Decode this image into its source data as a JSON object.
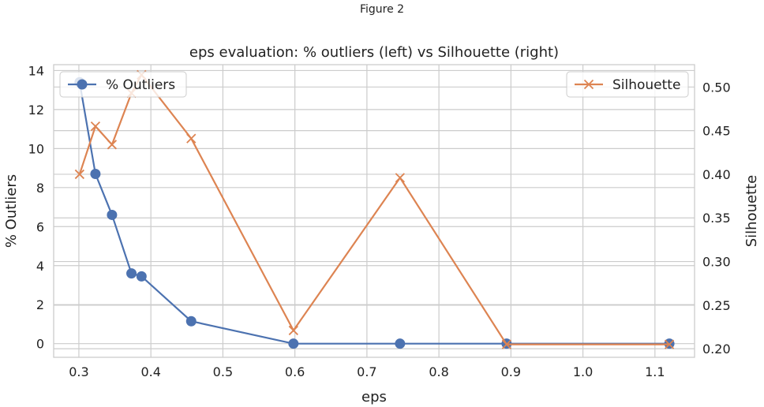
{
  "window": {
    "title": "Figure 2"
  },
  "chart_data": {
    "type": "line",
    "title": "eps evaluation: % outliers (left) vs Silhouette (right)",
    "xlabel": "eps",
    "ylabel_left": "% Outliers",
    "ylabel_right": "Silhouette",
    "xlim": [
      0.265,
      1.155
    ],
    "ylim_left": [
      -0.7,
      14.3
    ],
    "ylim_right": [
      0.1902,
      0.5256
    ],
    "x_ticks": [
      0.3,
      0.4,
      0.5,
      0.6,
      0.7,
      0.8,
      0.9,
      1.0,
      1.1
    ],
    "x_tick_labels": [
      "0.3",
      "0.4",
      "0.5",
      "0.6",
      "0.7",
      "0.8",
      "0.9",
      "1.0",
      "1.1"
    ],
    "y_left_ticks": [
      0,
      2,
      4,
      6,
      8,
      10,
      12,
      14
    ],
    "y_left_tick_labels": [
      "0",
      "2",
      "4",
      "6",
      "8",
      "10",
      "12",
      "14"
    ],
    "y_right_ticks": [
      0.2,
      0.25,
      0.3,
      0.35,
      0.4,
      0.45,
      0.5
    ],
    "y_right_tick_labels": [
      "0.20",
      "0.25",
      "0.30",
      "0.35",
      "0.40",
      "0.45",
      "0.50"
    ],
    "grid": true,
    "series": [
      {
        "name": "% Outliers",
        "axis": "left",
        "color": "#4c72b0",
        "marker": "circle",
        "legend_position": "upper left",
        "x": [
          0.301,
          0.323,
          0.346,
          0.373,
          0.387,
          0.456,
          0.598,
          0.746,
          0.894,
          1.12
        ],
        "values": [
          13.4,
          8.7,
          6.6,
          3.6,
          3.45,
          1.15,
          0.0,
          0.0,
          0.0,
          0.0
        ]
      },
      {
        "name": "Silhouette",
        "axis": "right",
        "color": "#dd8452",
        "marker": "x",
        "legend_position": "upper right",
        "x": [
          0.301,
          0.323,
          0.346,
          0.373,
          0.387,
          0.456,
          0.598,
          0.746,
          0.894,
          1.12
        ],
        "values": [
          0.4,
          0.455,
          0.434,
          0.493,
          0.514,
          0.441,
          0.221,
          0.396,
          0.205,
          0.205
        ]
      }
    ]
  }
}
